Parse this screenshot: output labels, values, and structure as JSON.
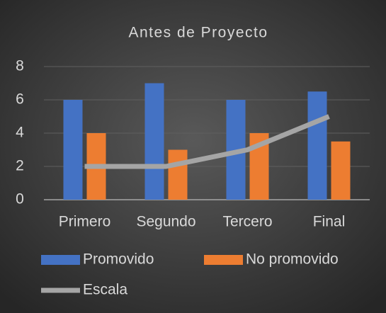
{
  "chart_data": {
    "type": "bar",
    "title": "Antes de Proyecto",
    "categories": [
      "Primero",
      "Segundo",
      "Tercero",
      "Final"
    ],
    "series": [
      {
        "name": "Promovido",
        "color": "#4472c4",
        "values": [
          6,
          7,
          6,
          6.5
        ]
      },
      {
        "name": "No promovido",
        "color": "#ed7d31",
        "values": [
          4,
          3,
          4,
          3.5
        ]
      },
      {
        "name": "Escala",
        "color": "#a5a5a5",
        "type": "line",
        "values": [
          2,
          2,
          3,
          5
        ]
      }
    ],
    "ylim": [
      0,
      8
    ],
    "yticks": [
      0,
      2,
      4,
      6,
      8
    ],
    "grid": true,
    "legend": "bottom"
  }
}
